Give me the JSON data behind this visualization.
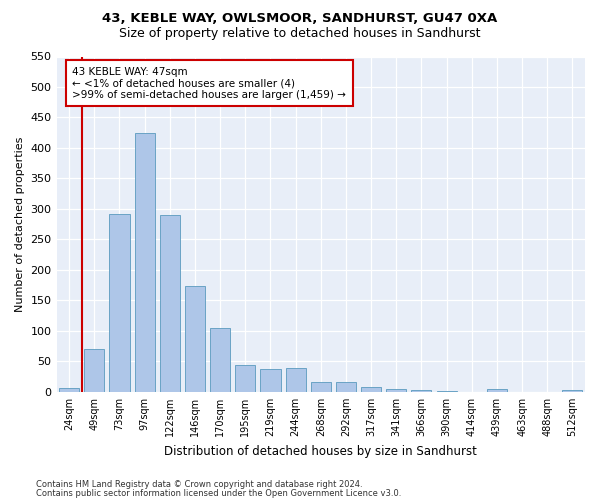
{
  "title": "43, KEBLE WAY, OWLSMOOR, SANDHURST, GU47 0XA",
  "subtitle": "Size of property relative to detached houses in Sandhurst",
  "xlabel": "Distribution of detached houses by size in Sandhurst",
  "ylabel": "Number of detached properties",
  "categories": [
    "24sqm",
    "49sqm",
    "73sqm",
    "97sqm",
    "122sqm",
    "146sqm",
    "170sqm",
    "195sqm",
    "219sqm",
    "244sqm",
    "268sqm",
    "292sqm",
    "317sqm",
    "341sqm",
    "366sqm",
    "390sqm",
    "414sqm",
    "439sqm",
    "463sqm",
    "488sqm",
    "512sqm"
  ],
  "values": [
    7,
    70,
    292,
    425,
    290,
    173,
    105,
    44,
    38,
    40,
    17,
    17,
    8,
    5,
    3,
    1,
    0,
    5,
    0,
    0,
    3
  ],
  "bar_color": "#aec6e8",
  "bar_edge_color": "#5a9abf",
  "annotation_border_color": "#cc0000",
  "annotation_text_line1": "43 KEBLE WAY: 47sqm",
  "annotation_text_line2": "← <1% of detached houses are smaller (4)",
  "annotation_text_line3": ">99% of semi-detached houses are larger (1,459) →",
  "ylim": [
    0,
    550
  ],
  "yticks": [
    0,
    50,
    100,
    150,
    200,
    250,
    300,
    350,
    400,
    450,
    500,
    550
  ],
  "footer_line1": "Contains HM Land Registry data © Crown copyright and database right 2024.",
  "footer_line2": "Contains public sector information licensed under the Open Government Licence v3.0.",
  "background_color": "#e8eef8",
  "title_fontsize": 9.5,
  "subtitle_fontsize": 9
}
